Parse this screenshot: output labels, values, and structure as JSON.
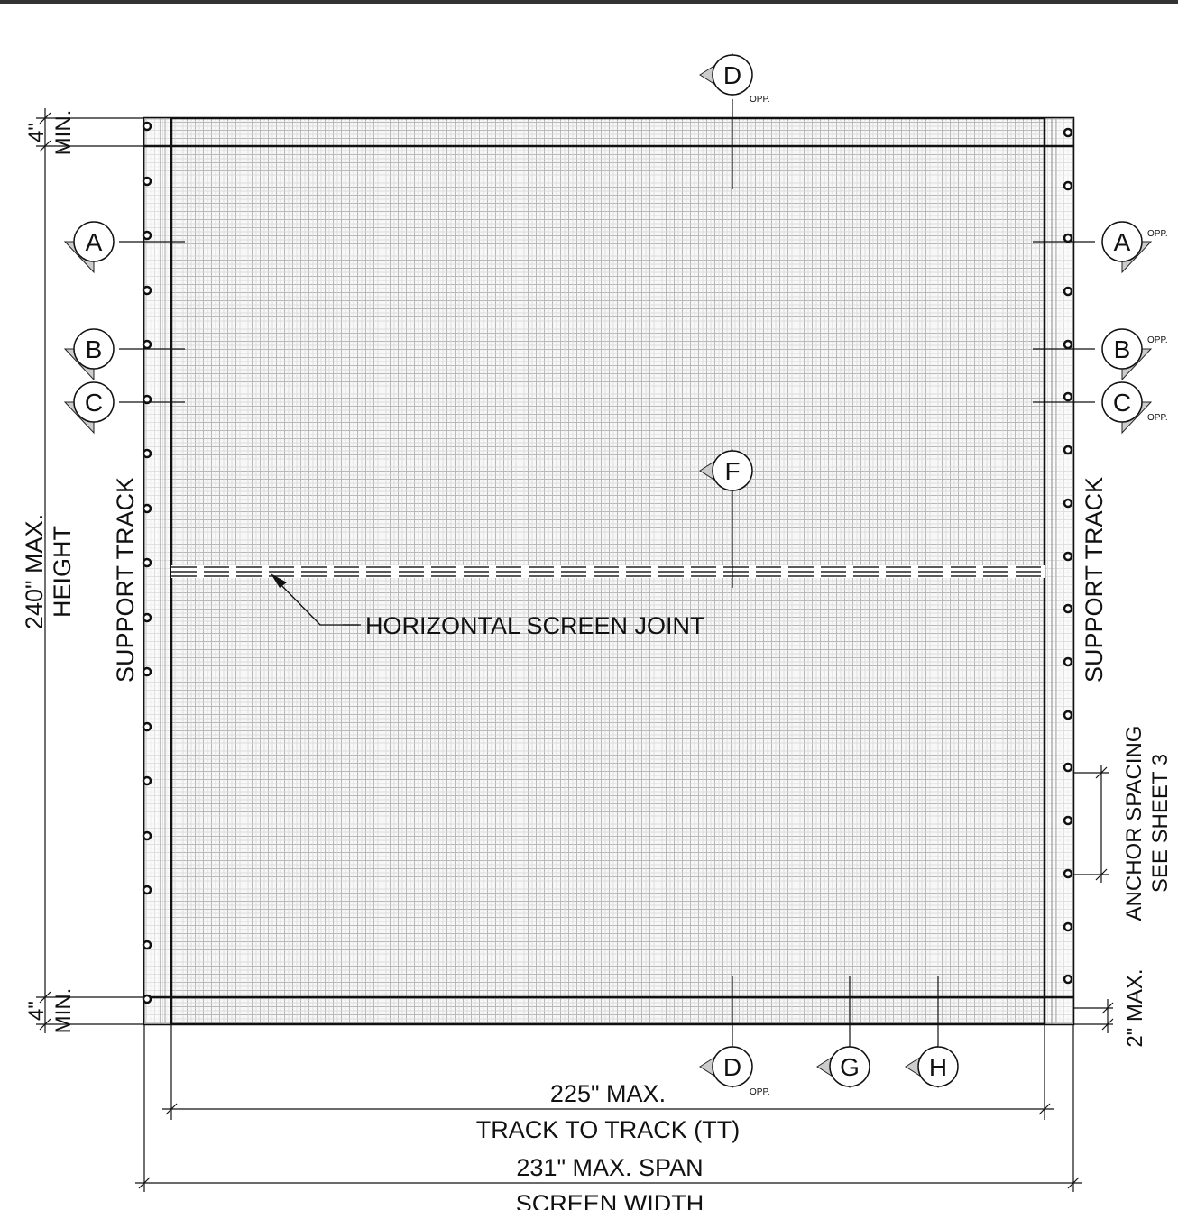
{
  "bubbles": [
    {
      "letter": "D",
      "opp": "OPP."
    },
    {
      "letter": "A",
      "opp": ""
    },
    {
      "letter": "B",
      "opp": ""
    },
    {
      "letter": "C",
      "opp": ""
    },
    {
      "letter": "A",
      "opp": "OPP."
    },
    {
      "letter": "B",
      "opp": "OPP."
    },
    {
      "letter": "C",
      "opp": "OPP."
    },
    {
      "letter": "F",
      "opp": ""
    },
    {
      "letter": "D",
      "opp": "OPP."
    },
    {
      "letter": "G",
      "opp": ""
    },
    {
      "letter": "H",
      "opp": ""
    }
  ],
  "labels": {
    "support_track_left": "SUPPORT TRACK",
    "support_track_right": "SUPPORT TRACK",
    "height_value": "240\" MAX.",
    "height_name": "HEIGHT",
    "top_clear_value": "4\"",
    "top_clear_min": "MIN.",
    "bottom_clear_value": "4\"",
    "bottom_clear_min": "MIN.",
    "joint": "HORIZONTAL SCREEN JOINT",
    "anchor_1": "ANCHOR SPACING",
    "anchor_2": "SEE SHEET 3",
    "two_max": "2\" MAX.",
    "tt_value": "225\" MAX.",
    "tt_name": "TRACK TO TRACK (TT)",
    "span_value": "231\" MAX. SPAN",
    "span_name": "SCREEN WIDTH"
  }
}
